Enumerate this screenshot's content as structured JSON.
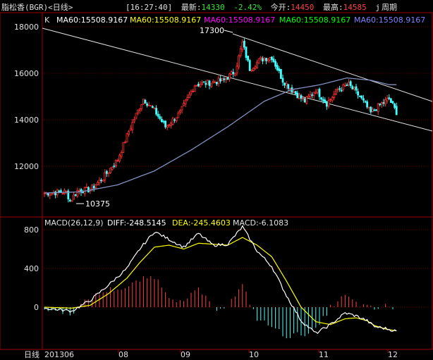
{
  "header": {
    "stock_name": "脂松香(BGR)<日线>",
    "time": "[16:27:40]",
    "latest_label": "最新:",
    "latest_value": "14330",
    "change": "-2.42%",
    "open_label": "今开:",
    "open_value": "14450",
    "high_label": "最高:",
    "high_value": "14585",
    "period_icon": "j",
    "period_label": "周期"
  },
  "main_panel": {
    "tag": "K",
    "ma_labels": [
      {
        "text": "MA60:15508.9167",
        "color": "#ffffff"
      },
      {
        "text": "MA60:15508.9167",
        "color": "#ffff00"
      },
      {
        "text": "MA60:15508.9167",
        "color": "#ff00ff"
      },
      {
        "text": "MA60:15508.9167",
        "color": "#00ff00"
      },
      {
        "text": "MA60:15508.9167",
        "color": "#8080ff"
      }
    ],
    "high_marker": "17300",
    "low_marker": "10375",
    "y_ticks": [
      "18000",
      "16000",
      "14000",
      "12000"
    ]
  },
  "macd_panel": {
    "title": "MACD(26,12,9)",
    "diff": "DIFF:-248.5145",
    "dea": "DEA:-245.4603",
    "macd": "MACD:-6.1083",
    "y_ticks": [
      "800",
      "400",
      "0"
    ]
  },
  "x_axis": {
    "period": "日线",
    "labels": [
      "201306",
      "08",
      "09",
      "10",
      "11",
      "12"
    ]
  },
  "chart_data": {
    "type": "candlestick",
    "ylim": [
      10500,
      18300
    ],
    "macd_ylim": [
      -380,
      900
    ],
    "close_keypoints": [
      [
        0,
        10850
      ],
      [
        12,
        10900
      ],
      [
        14,
        10500
      ],
      [
        18,
        10950
      ],
      [
        25,
        11000
      ],
      [
        32,
        11500
      ],
      [
        40,
        12300
      ],
      [
        47,
        13700
      ],
      [
        54,
        14900
      ],
      [
        60,
        14400
      ],
      [
        66,
        13700
      ],
      [
        74,
        14300
      ],
      [
        82,
        15500
      ],
      [
        90,
        15600
      ],
      [
        98,
        15700
      ],
      [
        104,
        16100
      ],
      [
        108,
        17300
      ],
      [
        112,
        16200
      ],
      [
        118,
        16600
      ],
      [
        124,
        16700
      ],
      [
        130,
        15700
      ],
      [
        136,
        15200
      ],
      [
        142,
        14800
      ],
      [
        148,
        15300
      ],
      [
        154,
        14700
      ],
      [
        160,
        15300
      ],
      [
        166,
        15500
      ],
      [
        172,
        15000
      ],
      [
        178,
        14300
      ],
      [
        184,
        14700
      ],
      [
        188,
        14900
      ],
      [
        192,
        14330
      ]
    ],
    "ma_keypoints": [
      [
        0,
        10850
      ],
      [
        20,
        10900
      ],
      [
        40,
        11200
      ],
      [
        60,
        11800
      ],
      [
        80,
        12700
      ],
      [
        100,
        13700
      ],
      [
        120,
        14800
      ],
      [
        135,
        15300
      ],
      [
        150,
        15500
      ],
      [
        165,
        15800
      ],
      [
        178,
        15700
      ],
      [
        188,
        15508
      ]
    ],
    "diff_keypoints": [
      [
        0,
        -10
      ],
      [
        15,
        -40
      ],
      [
        25,
        70
      ],
      [
        35,
        230
      ],
      [
        45,
        400
      ],
      [
        52,
        600
      ],
      [
        60,
        780
      ],
      [
        68,
        700
      ],
      [
        76,
        620
      ],
      [
        84,
        760
      ],
      [
        92,
        640
      ],
      [
        100,
        650
      ],
      [
        108,
        830
      ],
      [
        116,
        580
      ],
      [
        124,
        420
      ],
      [
        132,
        120
      ],
      [
        140,
        -140
      ],
      [
        148,
        -270
      ],
      [
        156,
        -180
      ],
      [
        164,
        -60
      ],
      [
        170,
        -90
      ],
      [
        176,
        -140
      ],
      [
        180,
        -200
      ],
      [
        186,
        -220
      ],
      [
        192,
        -248
      ]
    ],
    "dea_keypoints": [
      [
        0,
        0
      ],
      [
        15,
        -10
      ],
      [
        25,
        20
      ],
      [
        35,
        140
      ],
      [
        45,
        300
      ],
      [
        52,
        460
      ],
      [
        60,
        620
      ],
      [
        68,
        640
      ],
      [
        76,
        600
      ],
      [
        84,
        660
      ],
      [
        92,
        650
      ],
      [
        100,
        640
      ],
      [
        108,
        720
      ],
      [
        116,
        640
      ],
      [
        124,
        520
      ],
      [
        132,
        270
      ],
      [
        140,
        0
      ],
      [
        148,
        -150
      ],
      [
        156,
        -180
      ],
      [
        164,
        -120
      ],
      [
        170,
        -110
      ],
      [
        176,
        -140
      ],
      [
        180,
        -190
      ],
      [
        186,
        -225
      ],
      [
        192,
        -245
      ]
    ]
  }
}
